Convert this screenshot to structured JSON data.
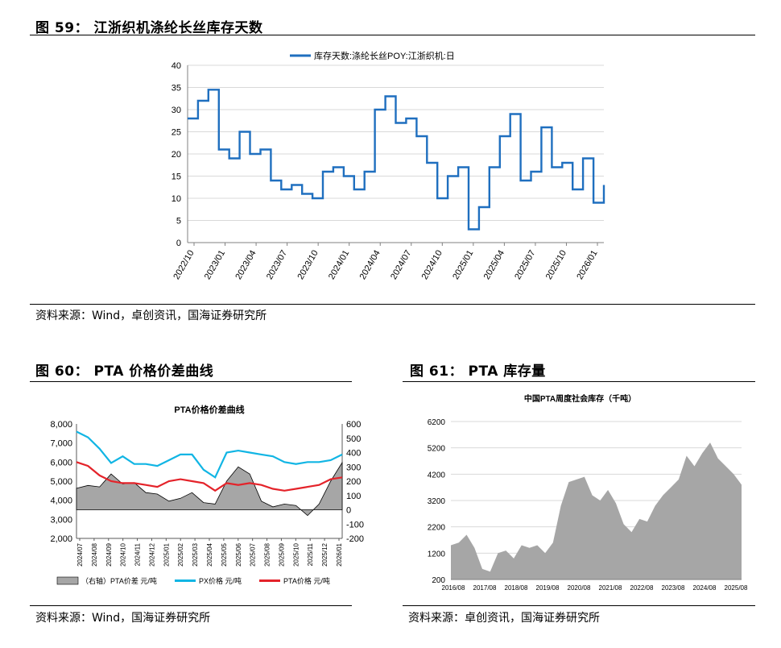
{
  "fig59": {
    "title": "图 59：  江浙织机涤纶长丝库存天数",
    "source": "资料来源：Wind，卓创资讯，国海证券研究所"
  },
  "fig60": {
    "title": "图 60：  PTA 价格价差曲线",
    "source": "资料来源：Wind，国海证券研究所"
  },
  "fig61": {
    "title": "图 61：  PTA 库存量",
    "source": "资料来源：卓创资讯，国海证券研究所"
  },
  "chart_data": [
    {
      "id": "inventory-days",
      "type": "line",
      "title": "",
      "legend": "库存天数:涤纶长丝POY:江浙织机:日",
      "legend_position": "top-center",
      "ylim": [
        0,
        40
      ],
      "yticks": [
        0,
        5,
        10,
        15,
        20,
        25,
        30,
        35,
        40
      ],
      "xticks": [
        "2022/10",
        "2023/01",
        "2023/04",
        "2023/07",
        "2023/10",
        "2024/01",
        "2024/04",
        "2024/07",
        "2024/10",
        "2025/01",
        "2025/04",
        "2025/07",
        "2025/10",
        "2026/01"
      ],
      "color": "#1f6fbf",
      "grid": true,
      "x": [
        "2022/10",
        "2022/11",
        "2022/12",
        "2023/01",
        "2023/02",
        "2023/03",
        "2023/04",
        "2023/05",
        "2023/06",
        "2023/07",
        "2023/08",
        "2023/09",
        "2023/10",
        "2023/11",
        "2023/12",
        "2024/01",
        "2024/02",
        "2024/03",
        "2024/04",
        "2024/05",
        "2024/06",
        "2024/07",
        "2024/08",
        "2024/09",
        "2024/10",
        "2024/11",
        "2024/12",
        "2025/01",
        "2025/02",
        "2025/03",
        "2025/04",
        "2025/05",
        "2025/06",
        "2025/07",
        "2025/08",
        "2025/09",
        "2025/10",
        "2025/11",
        "2025/12",
        "2026/01",
        "2026/02"
      ],
      "values": [
        28,
        32,
        34.5,
        21,
        19,
        25,
        20,
        21,
        14,
        12,
        13,
        11,
        10,
        16,
        17,
        15,
        12,
        16,
        30,
        33,
        27,
        28,
        24,
        18,
        10,
        15,
        17,
        3,
        8,
        17,
        24,
        29,
        14,
        16,
        26,
        17,
        18,
        12,
        19,
        9,
        13
      ]
    },
    {
      "id": "pta-price-spread",
      "type": "line",
      "title": "PTA价格价差曲线",
      "legend_position": "bottom",
      "ylim_left": [
        2000,
        8000
      ],
      "yticks_left": [
        "2,000",
        "3,000",
        "4,000",
        "5,000",
        "6,000",
        "7,000",
        "8,000"
      ],
      "ylim_right": [
        -200,
        600
      ],
      "yticks_right": [
        "-200",
        "-100",
        "0",
        "100",
        "200",
        "300",
        "400",
        "500",
        "600"
      ],
      "xticks": [
        "2024/07",
        "2024/08",
        "2024/09",
        "2024/10",
        "2024/11",
        "2024/12",
        "2025/01",
        "2025/02",
        "2025/03",
        "2025/04",
        "2025/05",
        "2025/06",
        "2025/07",
        "2025/08",
        "2025/09",
        "2025/10",
        "2025/11",
        "2025/12",
        "2026/01"
      ],
      "series": [
        {
          "name": "（右轴）PTA价差  元/吨",
          "axis": "right",
          "kind": "area",
          "color": "#a6a6a6",
          "values": [
            150,
            170,
            160,
            250,
            180,
            190,
            120,
            110,
            60,
            80,
            120,
            50,
            40,
            200,
            300,
            250,
            60,
            20,
            40,
            30,
            -40,
            40,
            200,
            330
          ]
        },
        {
          "name": "PX价格  元/吨",
          "axis": "left",
          "kind": "line",
          "color": "#11b5e4",
          "values": [
            7600,
            7300,
            6700,
            5950,
            6300,
            5900,
            5900,
            5800,
            6100,
            6400,
            6400,
            5600,
            5200,
            6500,
            6600,
            6500,
            6400,
            6300,
            6000,
            5900,
            6000,
            6000,
            6100,
            6400
          ]
        },
        {
          "name": "PTA价格  元/吨",
          "axis": "left",
          "kind": "line",
          "color": "#e4232a",
          "values": [
            6000,
            5800,
            5300,
            5000,
            4900,
            4900,
            4800,
            4700,
            5000,
            5100,
            5000,
            4900,
            4500,
            4900,
            4800,
            4900,
            4800,
            4600,
            4500,
            4600,
            4700,
            4800,
            5100,
            5200
          ]
        }
      ]
    },
    {
      "id": "pta-inventory",
      "type": "area",
      "title": "中国PTA周度社会库存（千吨）",
      "ylim": [
        200,
        6200
      ],
      "yticks": [
        200,
        1200,
        2200,
        3200,
        4200,
        5200,
        6200
      ],
      "xticks": [
        "2016/08",
        "2017/08",
        "2018/08",
        "2019/08",
        "2020/08",
        "2021/08",
        "2022/08",
        "2023/08",
        "2024/08",
        "2025/08"
      ],
      "color": "#a6a6a6",
      "grid": true,
      "x": [
        "2016/08",
        "2016/11",
        "2017/02",
        "2017/05",
        "2017/08",
        "2017/11",
        "2018/02",
        "2018/05",
        "2018/08",
        "2018/11",
        "2019/02",
        "2019/05",
        "2019/08",
        "2019/11",
        "2020/02",
        "2020/05",
        "2020/08",
        "2020/11",
        "2021/02",
        "2021/05",
        "2021/08",
        "2021/11",
        "2022/02",
        "2022/05",
        "2022/08",
        "2022/11",
        "2023/02",
        "2023/05",
        "2023/08",
        "2023/11",
        "2024/02",
        "2024/05",
        "2024/08",
        "2024/11",
        "2025/02",
        "2025/05",
        "2025/08",
        "2025/11"
      ],
      "values": [
        1500,
        1600,
        1900,
        1400,
        600,
        500,
        1200,
        1300,
        1000,
        1500,
        1400,
        1500,
        1200,
        1600,
        3000,
        3900,
        4000,
        4100,
        3400,
        3200,
        3600,
        3100,
        2300,
        2000,
        2500,
        2400,
        3000,
        3400,
        3700,
        4000,
        4900,
        4500,
        5000,
        5400,
        4800,
        4500,
        4200,
        3800
      ]
    }
  ]
}
